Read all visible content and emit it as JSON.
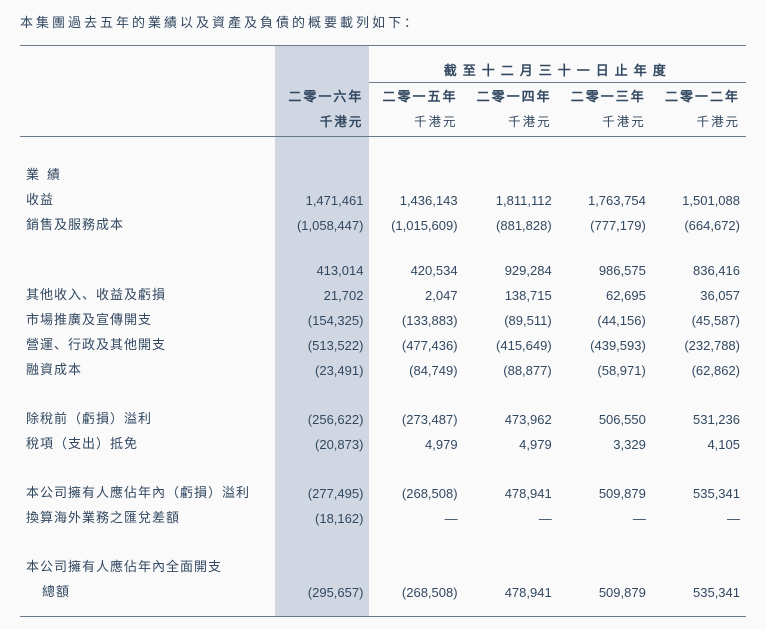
{
  "intro": "本集團過去五年的業績以及資產及負債的概要載列如下：",
  "header": {
    "spanning": "截至十二月三十一日止年度",
    "years": [
      "二零一六年",
      "二零一五年",
      "二零一四年",
      "二零一三年",
      "二零一二年"
    ],
    "unit": "千港元"
  },
  "sections": {
    "perf_label": "業績",
    "rows1": [
      {
        "label": "收益",
        "v": [
          "1,471,461",
          "1,436,143",
          "1,811,112",
          "1,763,754",
          "1,501,088"
        ]
      },
      {
        "label": "銷售及服務成本",
        "v": [
          "(1,058,447)",
          "(1,015,609)",
          "(881,828)",
          "(777,179)",
          "(664,672)"
        ]
      }
    ],
    "rows2": [
      {
        "label": "",
        "v": [
          "413,014",
          "420,534",
          "929,284",
          "986,575",
          "836,416"
        ]
      },
      {
        "label": "其他收入、收益及虧損",
        "v": [
          "21,702",
          "2,047",
          "138,715",
          "62,695",
          "36,057"
        ]
      },
      {
        "label": "市場推廣及宣傳開支",
        "v": [
          "(154,325)",
          "(133,883)",
          "(89,511)",
          "(44,156)",
          "(45,587)"
        ]
      },
      {
        "label": "營運、行政及其他開支",
        "v": [
          "(513,522)",
          "(477,436)",
          "(415,649)",
          "(439,593)",
          "(232,788)"
        ]
      },
      {
        "label": "融資成本",
        "v": [
          "(23,491)",
          "(84,749)",
          "(88,877)",
          "(58,971)",
          "(62,862)"
        ]
      }
    ],
    "rows3": [
      {
        "label": "除稅前（虧損）溢利",
        "v": [
          "(256,622)",
          "(273,487)",
          "473,962",
          "506,550",
          "531,236"
        ]
      },
      {
        "label": "稅項（支出）抵免",
        "v": [
          "(20,873)",
          "4,979",
          "4,979",
          "3,329",
          "4,105"
        ]
      }
    ],
    "rows4": [
      {
        "label": "本公司擁有人應佔年內（虧損）溢利",
        "v": [
          "(277,495)",
          "(268,508)",
          "478,941",
          "509,879",
          "535,341"
        ]
      },
      {
        "label": "換算海外業務之匯兌差額",
        "v": [
          "(18,162)",
          "—",
          "—",
          "—",
          "—"
        ]
      }
    ],
    "rows5_label1": "本公司擁有人應佔年內全面開支",
    "rows5_label2": "總額",
    "rows5_v": [
      "(295,657)",
      "(268,508)",
      "478,941",
      "509,879",
      "535,341"
    ]
  },
  "style": {
    "text_color": "#324861",
    "highlight_bg": "#d0d7e2",
    "border_color": "#6a7a8d",
    "page_bg": "#fafafa"
  }
}
